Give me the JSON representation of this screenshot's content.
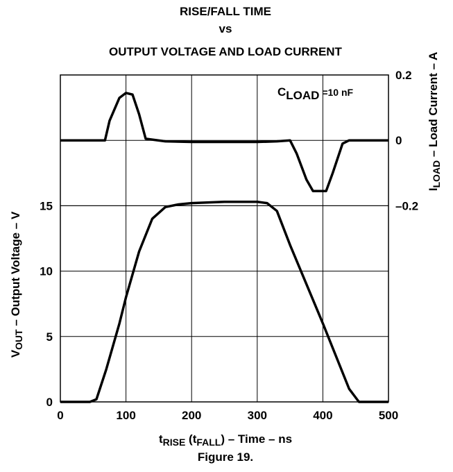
{
  "chart_data": {
    "type": "line",
    "title": [
      "RISE/FALL TIME",
      "vs",
      "OUTPUT VOLTAGE AND LOAD CURRENT"
    ],
    "caption": "Figure 19.",
    "annotation": [
      "C",
      "LOAD",
      " =10 nF"
    ],
    "x_label": [
      "t",
      "RISE",
      " (t",
      "FALL",
      ") – Time – ns"
    ],
    "y_label": [
      "V",
      "OUT",
      " – Output Voltage – V"
    ],
    "y2_label": [
      "I",
      "LOAD",
      " – Load Current – A"
    ],
    "xlim": [
      0,
      500
    ],
    "xticks": [
      0,
      100,
      200,
      300,
      400,
      500
    ],
    "ylim": [
      0,
      25
    ],
    "yticks": [
      0,
      5,
      10,
      15
    ],
    "y2lim": [
      -0.8,
      0.2
    ],
    "y2ticks": [
      0.2,
      0,
      {
        "value": -0.2,
        "label": "–0.2"
      }
    ],
    "grid": true,
    "series": [
      {
        "color": "#000000",
        "x": [
          0,
          45,
          55,
          70,
          90,
          100,
          120,
          140,
          160,
          180,
          200,
          250,
          300,
          315,
          330,
          350,
          400,
          440,
          455,
          500
        ],
        "values": [
          0,
          0,
          0.2,
          2.5,
          6,
          8,
          11.5,
          14,
          14.9,
          15.1,
          15.2,
          15.3,
          15.3,
          15.2,
          14.6,
          12,
          6,
          1,
          0,
          0
        ]
      },
      {
        "color": "#000000",
        "axis": "y2",
        "x": [
          0,
          68,
          75,
          90,
          100,
          110,
          120,
          130,
          160,
          200,
          300,
          330,
          350,
          360,
          375,
          385,
          405,
          415,
          430,
          440,
          500
        ],
        "values": [
          0,
          0,
          0.06,
          0.13,
          0.145,
          0.14,
          0.08,
          0.005,
          -0.003,
          -0.005,
          -0.005,
          -0.003,
          0,
          -0.04,
          -0.12,
          -0.155,
          -0.155,
          -0.1,
          -0.01,
          0,
          0
        ]
      }
    ]
  }
}
